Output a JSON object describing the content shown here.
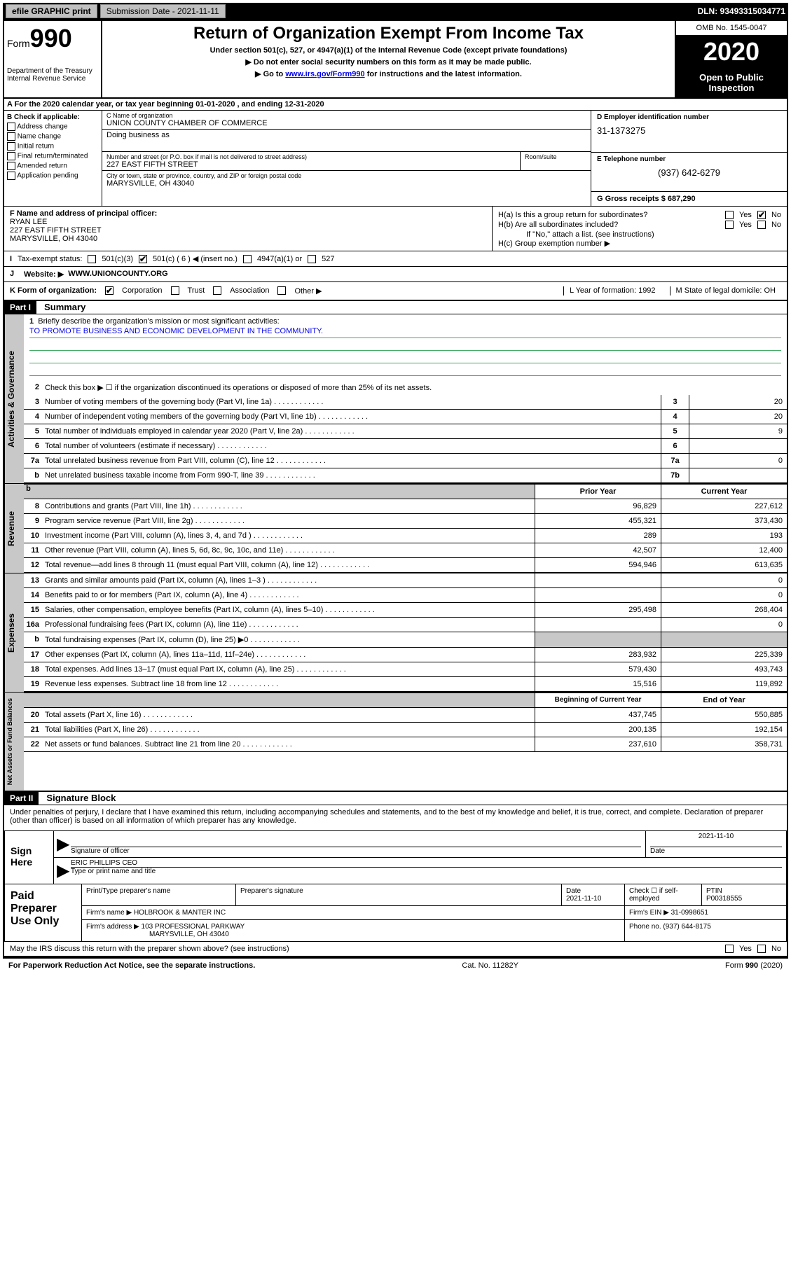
{
  "top": {
    "efile": "efile GRAPHIC print",
    "submission": "Submission Date - 2021-11-11",
    "dln": "DLN: 93493315034771"
  },
  "header": {
    "form": "Form",
    "formNum": "990",
    "dept": "Department of the Treasury\nInternal Revenue Service",
    "title": "Return of Organization Exempt From Income Tax",
    "subtitle": "Under section 501(c), 527, or 4947(a)(1) of the Internal Revenue Code (except private foundations)",
    "instr1": "▶ Do not enter social security numbers on this form as it may be made public.",
    "instr2_pre": "▶ Go to ",
    "instr2_link": "www.irs.gov/Form990",
    "instr2_post": " for instructions and the latest information.",
    "omb": "OMB No. 1545-0047",
    "year": "2020",
    "openPublic": "Open to Public Inspection"
  },
  "rowA": "A For the 2020 calendar year, or tax year beginning 01-01-2020    , and ending 12-31-2020",
  "sectionB": {
    "label": "B Check if applicable:",
    "opts": [
      "Address change",
      "Name change",
      "Initial return",
      "Final return/terminated",
      "Amended return",
      "Application pending"
    ],
    "nameLabel": "C Name of organization",
    "orgName": "UNION COUNTY CHAMBER OF COMMERCE",
    "dbaLabel": "Doing business as",
    "addrLabel": "Number and street (or P.O. box if mail is not delivered to street address)",
    "addr": "227 EAST FIFTH STREET",
    "roomLabel": "Room/suite",
    "cityLabel": "City or town, state or province, country, and ZIP or foreign postal code",
    "city": "MARYSVILLE, OH  43040",
    "einLabel": "D Employer identification number",
    "ein": "31-1373275",
    "phoneLabel": "E Telephone number",
    "phone": "(937) 642-6279",
    "grossLabel": "G Gross receipts $ 687,290"
  },
  "sectionF": {
    "label": "F  Name and address of principal officer:",
    "name": "RYAN LEE",
    "addr1": "227 EAST FIFTH STREET",
    "addr2": "MARYSVILLE, OH  43040",
    "ha": "H(a)  Is this a group return for subordinates?",
    "hb": "H(b)  Are all subordinates included?",
    "hbNote": "If \"No,\" attach a list. (see instructions)",
    "hc": "H(c)  Group exemption number ▶",
    "yes": "Yes",
    "no": "No"
  },
  "rowI": {
    "label": "Tax-exempt status:",
    "opts": [
      "501(c)(3)",
      "501(c) ( 6 ) ◀ (insert no.)",
      "4947(a)(1) or",
      "527"
    ]
  },
  "rowJ": {
    "label": "J",
    "text": "Website: ▶",
    "url": "WWW.UNIONCOUNTY.ORG"
  },
  "rowK": {
    "label": "K Form of organization:",
    "opts": [
      "Corporation",
      "Trust",
      "Association",
      "Other ▶"
    ],
    "yearLabel": "L Year of formation: 1992",
    "stateLabel": "M State of legal domicile: OH"
  },
  "part1": {
    "header": "Part I",
    "title": "Summary",
    "tab1": "Activities & Governance",
    "tab2": "Revenue",
    "tab3": "Expenses",
    "tab4": "Net Assets or Fund Balances",
    "q1": "Briefly describe the organization's mission or most significant activities:",
    "mission": "TO PROMOTE BUSINESS AND ECONOMIC DEVELOPMENT IN THE COMMUNITY.",
    "q2": "Check this box ▶ ☐  if the organization discontinued its operations or disposed of more than 25% of its net assets.",
    "lines": [
      {
        "n": "3",
        "t": "Number of voting members of the governing body (Part VI, line 1a)",
        "bn": "3",
        "v": "20"
      },
      {
        "n": "4",
        "t": "Number of independent voting members of the governing body (Part VI, line 1b)",
        "bn": "4",
        "v": "20"
      },
      {
        "n": "5",
        "t": "Total number of individuals employed in calendar year 2020 (Part V, line 2a)",
        "bn": "5",
        "v": "9"
      },
      {
        "n": "6",
        "t": "Total number of volunteers (estimate if necessary)",
        "bn": "6",
        "v": ""
      },
      {
        "n": "7a",
        "t": "Total unrelated business revenue from Part VIII, column (C), line 12",
        "bn": "7a",
        "v": "0"
      },
      {
        "n": "b",
        "t": "Net unrelated business taxable income from Form 990-T, line 39",
        "bn": "7b",
        "v": ""
      }
    ],
    "colPrior": "Prior Year",
    "colCurrent": "Current Year",
    "revLines": [
      {
        "n": "8",
        "t": "Contributions and grants (Part VIII, line 1h)",
        "p": "96,829",
        "c": "227,612"
      },
      {
        "n": "9",
        "t": "Program service revenue (Part VIII, line 2g)",
        "p": "455,321",
        "c": "373,430"
      },
      {
        "n": "10",
        "t": "Investment income (Part VIII, column (A), lines 3, 4, and 7d )",
        "p": "289",
        "c": "193"
      },
      {
        "n": "11",
        "t": "Other revenue (Part VIII, column (A), lines 5, 6d, 8c, 9c, 10c, and 11e)",
        "p": "42,507",
        "c": "12,400"
      },
      {
        "n": "12",
        "t": "Total revenue—add lines 8 through 11 (must equal Part VIII, column (A), line 12)",
        "p": "594,946",
        "c": "613,635"
      }
    ],
    "expLines": [
      {
        "n": "13",
        "t": "Grants and similar amounts paid (Part IX, column (A), lines 1–3 )",
        "p": "",
        "c": "0"
      },
      {
        "n": "14",
        "t": "Benefits paid to or for members (Part IX, column (A), line 4)",
        "p": "",
        "c": "0"
      },
      {
        "n": "15",
        "t": "Salaries, other compensation, employee benefits (Part IX, column (A), lines 5–10)",
        "p": "295,498",
        "c": "268,404"
      },
      {
        "n": "16a",
        "t": "Professional fundraising fees (Part IX, column (A), line 11e)",
        "p": "",
        "c": "0"
      },
      {
        "n": "b",
        "t": "Total fundraising expenses (Part IX, column (D), line 25) ▶0",
        "p": "",
        "c": "",
        "gray": true
      },
      {
        "n": "17",
        "t": "Other expenses (Part IX, column (A), lines 11a–11d, 11f–24e)",
        "p": "283,932",
        "c": "225,339"
      },
      {
        "n": "18",
        "t": "Total expenses. Add lines 13–17 (must equal Part IX, column (A), line 25)",
        "p": "579,430",
        "c": "493,743"
      },
      {
        "n": "19",
        "t": "Revenue less expenses. Subtract line 18 from line 12",
        "p": "15,516",
        "c": "119,892"
      }
    ],
    "colBegin": "Beginning of Current Year",
    "colEnd": "End of Year",
    "netLines": [
      {
        "n": "20",
        "t": "Total assets (Part X, line 16)",
        "p": "437,745",
        "c": "550,885"
      },
      {
        "n": "21",
        "t": "Total liabilities (Part X, line 26)",
        "p": "200,135",
        "c": "192,154"
      },
      {
        "n": "22",
        "t": "Net assets or fund balances. Subtract line 21 from line 20",
        "p": "237,610",
        "c": "358,731"
      }
    ]
  },
  "part2": {
    "header": "Part II",
    "title": "Signature Block",
    "penalty": "Under penalties of perjury, I declare that I have examined this return, including accompanying schedules and statements, and to the best of my knowledge and belief, it is true, correct, and complete. Declaration of preparer (other than officer) is based on all information of which preparer has any knowledge.",
    "signHere": "Sign Here",
    "sigOfficer": "Signature of officer",
    "sigDate": "2021-11-10",
    "dateLabel": "Date",
    "officerName": "ERIC PHILLIPS CEO",
    "typeLabel": "Type or print name and title",
    "paidPrep": "Paid Preparer Use Only",
    "prepNameLabel": "Print/Type preparer's name",
    "prepSigLabel": "Preparer's signature",
    "prepDateLabel": "Date",
    "prepDate": "2021-11-10",
    "checkLabel": "Check ☐ if self-employed",
    "ptinLabel": "PTIN",
    "ptin": "P00318555",
    "firmNameLabel": "Firm's name    ▶",
    "firmName": "HOLBROOK & MANTER INC",
    "firmEinLabel": "Firm's EIN ▶",
    "firmEin": "31-0998651",
    "firmAddrLabel": "Firm's address ▶",
    "firmAddr1": "103 PROFESSIONAL PARKWAY",
    "firmAddr2": "MARYSVILLE, OH  43040",
    "phoneNoLabel": "Phone no.",
    "phoneNo": "(937) 644-8175",
    "irsDiscuss": "May the IRS discuss this return with the preparer shown above? (see instructions)"
  },
  "footer": {
    "left": "For Paperwork Reduction Act Notice, see the separate instructions.",
    "center": "Cat. No. 11282Y",
    "right": "Form 990 (2020)"
  }
}
